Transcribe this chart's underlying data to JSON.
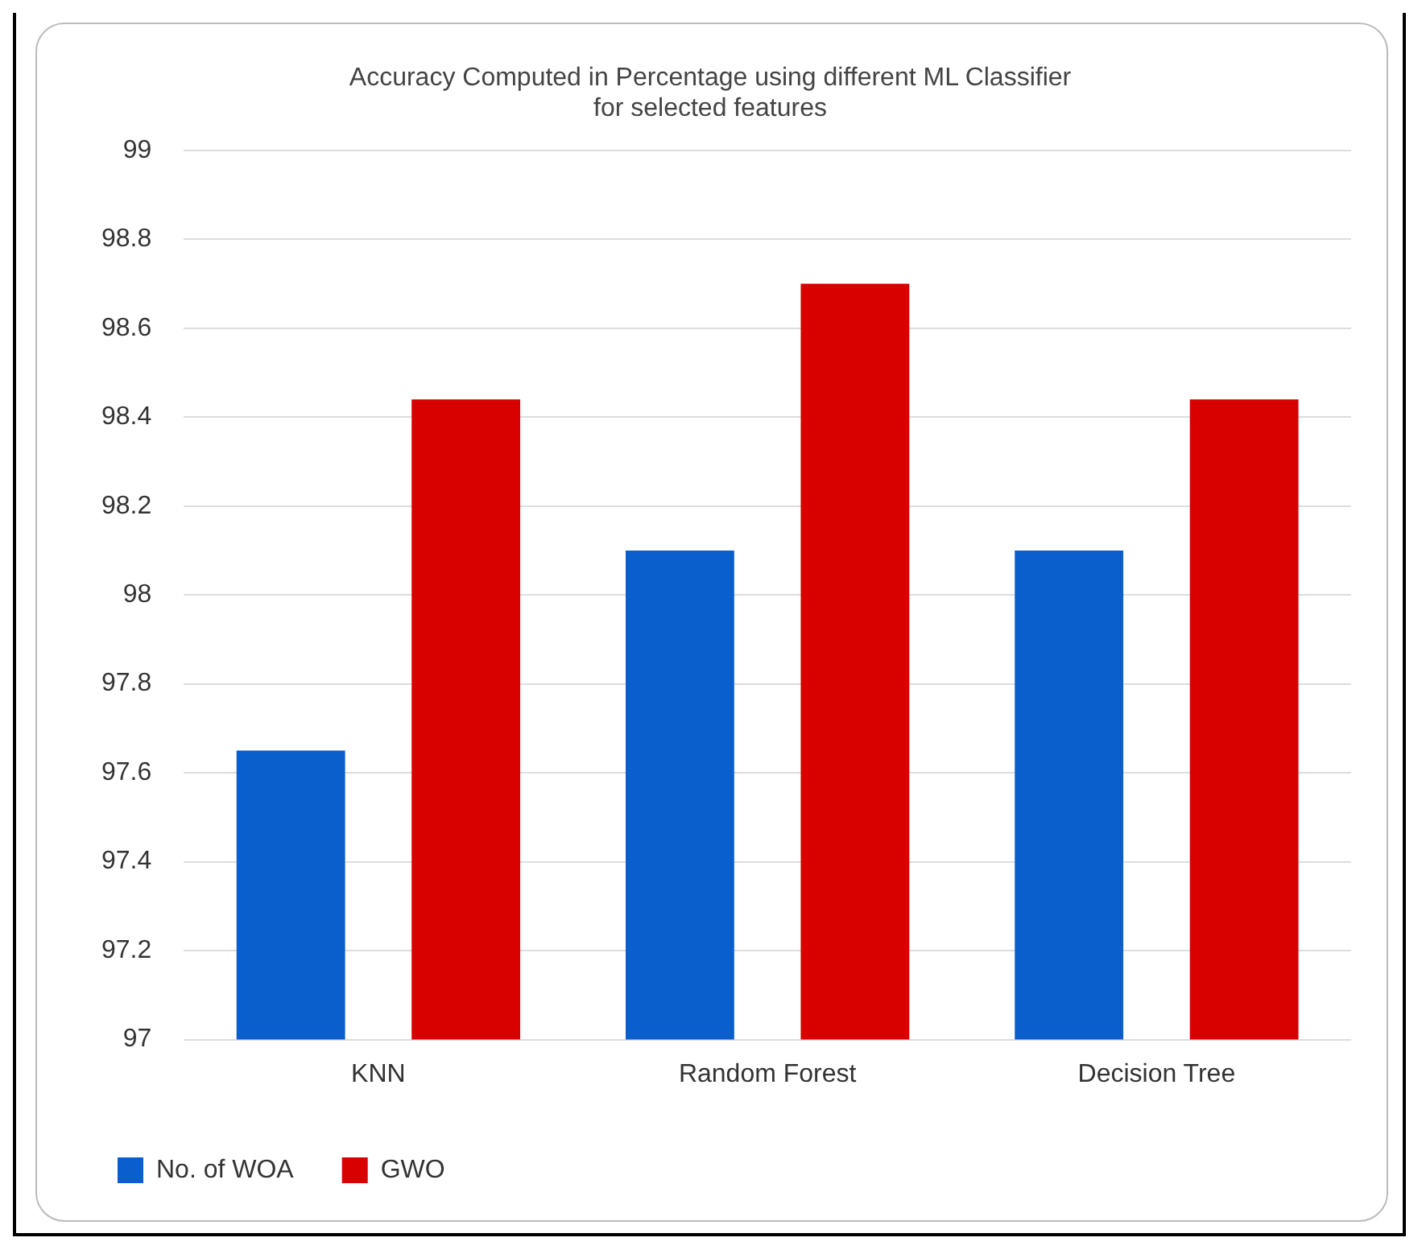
{
  "chart_data": {
    "type": "bar",
    "title": [
      "Accuracy Computed in Percentage using different ML Classifier",
      "for selected features"
    ],
    "categories": [
      "KNN",
      "Random Forest",
      "Decision Tree"
    ],
    "series": [
      {
        "name": "No. of WOA",
        "color": "#0a5fcc",
        "values": [
          97.65,
          98.1,
          98.1
        ]
      },
      {
        "name": "GWO",
        "color": "#d90000",
        "values": [
          98.44,
          98.7,
          98.44
        ]
      }
    ],
    "ylim": [
      97,
      99
    ],
    "yticks": [
      97,
      97.2,
      97.4,
      97.6,
      97.8,
      98,
      98.2,
      98.4,
      98.6,
      98.8,
      99
    ],
    "grid": "y",
    "legend": "bottom left"
  }
}
